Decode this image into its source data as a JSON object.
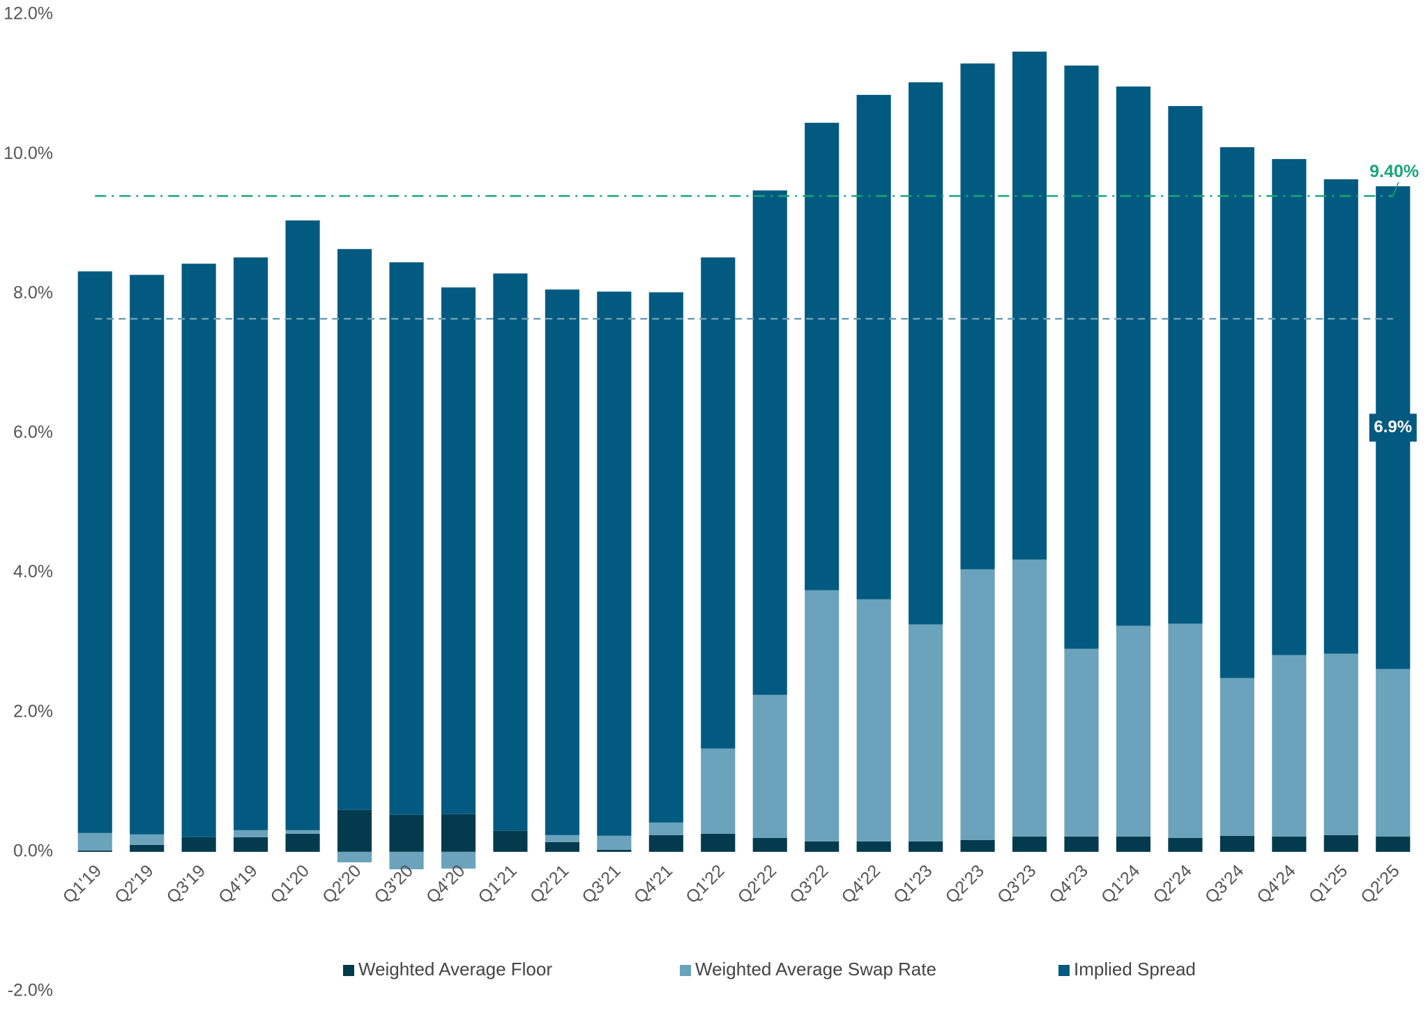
{
  "chart_data": {
    "type": "stacked_bar",
    "categories": [
      "Q1'19",
      "Q2'19",
      "Q3'19",
      "Q4'19",
      "Q1'20",
      "Q2'20",
      "Q3'20",
      "Q4'20",
      "Q1'21",
      "Q2'21",
      "Q3'21",
      "Q4'21",
      "Q1'22",
      "Q2'22",
      "Q3'22",
      "Q4'22",
      "Q1'23",
      "Q2'23",
      "Q3'23",
      "Q4'23",
      "Q1'24",
      "Q2'24",
      "Q3'24",
      "Q4'24",
      "Q1'25",
      "Q2'25"
    ],
    "series": [
      {
        "name": "Weighted Average Floor",
        "color": "#033a4d",
        "values": [
          0.02,
          0.1,
          0.21,
          0.21,
          0.26,
          0.6,
          0.53,
          0.54,
          0.3,
          0.14,
          0.03,
          0.24,
          0.26,
          0.2,
          0.15,
          0.15,
          0.15,
          0.17,
          0.22,
          0.22,
          0.22,
          0.2,
          0.23,
          0.22,
          0.24,
          0.22
        ]
      },
      {
        "name": "Weighted Average Swap Rate",
        "color": "#6aa3bb",
        "values": [
          0.25,
          0.15,
          0,
          0.1,
          0.05,
          -0.15,
          -0.25,
          -0.24,
          0,
          0.1,
          0.2,
          0.18,
          1.22,
          2.05,
          3.6,
          3.47,
          3.11,
          3.88,
          3.97,
          2.69,
          3.02,
          3.07,
          2.26,
          2.6,
          2.6,
          2.4
        ]
      },
      {
        "name": "Implied Spread",
        "color": "#035a80",
        "values": [
          8.05,
          8.02,
          8.22,
          8.21,
          8.74,
          8.04,
          7.92,
          7.55,
          7.99,
          7.82,
          7.8,
          7.6,
          7.04,
          7.23,
          6.7,
          7.23,
          7.77,
          7.25,
          7.28,
          8.36,
          7.73,
          7.42,
          7.61,
          7.11,
          6.8,
          6.92
        ],
        "value_labels": [
          null,
          null,
          null,
          null,
          null,
          null,
          null,
          null,
          null,
          null,
          null,
          null,
          null,
          null,
          null,
          null,
          null,
          null,
          null,
          null,
          null,
          null,
          null,
          null,
          null,
          "6.9%"
        ]
      }
    ],
    "ylim": [
      -2,
      12
    ],
    "yticks": [
      {
        "value": -2,
        "label": "-2.0%"
      },
      {
        "value": 0,
        "label": "0.0%"
      },
      {
        "value": 2,
        "label": "2.0%"
      },
      {
        "value": 4,
        "label": "4.0%"
      },
      {
        "value": 6,
        "label": "6.0%"
      },
      {
        "value": 8,
        "label": "8.0%"
      },
      {
        "value": 10,
        "label": "10.0%"
      },
      {
        "value": 12,
        "label": "12.0%"
      }
    ],
    "reference_lines": [
      {
        "value": 9.4,
        "label": "9.40%",
        "color": "#1aa676",
        "style": "dashdot"
      },
      {
        "value": 7.64,
        "color": "#6d9fb5",
        "style": "dashed"
      }
    ],
    "grid": false
  }
}
